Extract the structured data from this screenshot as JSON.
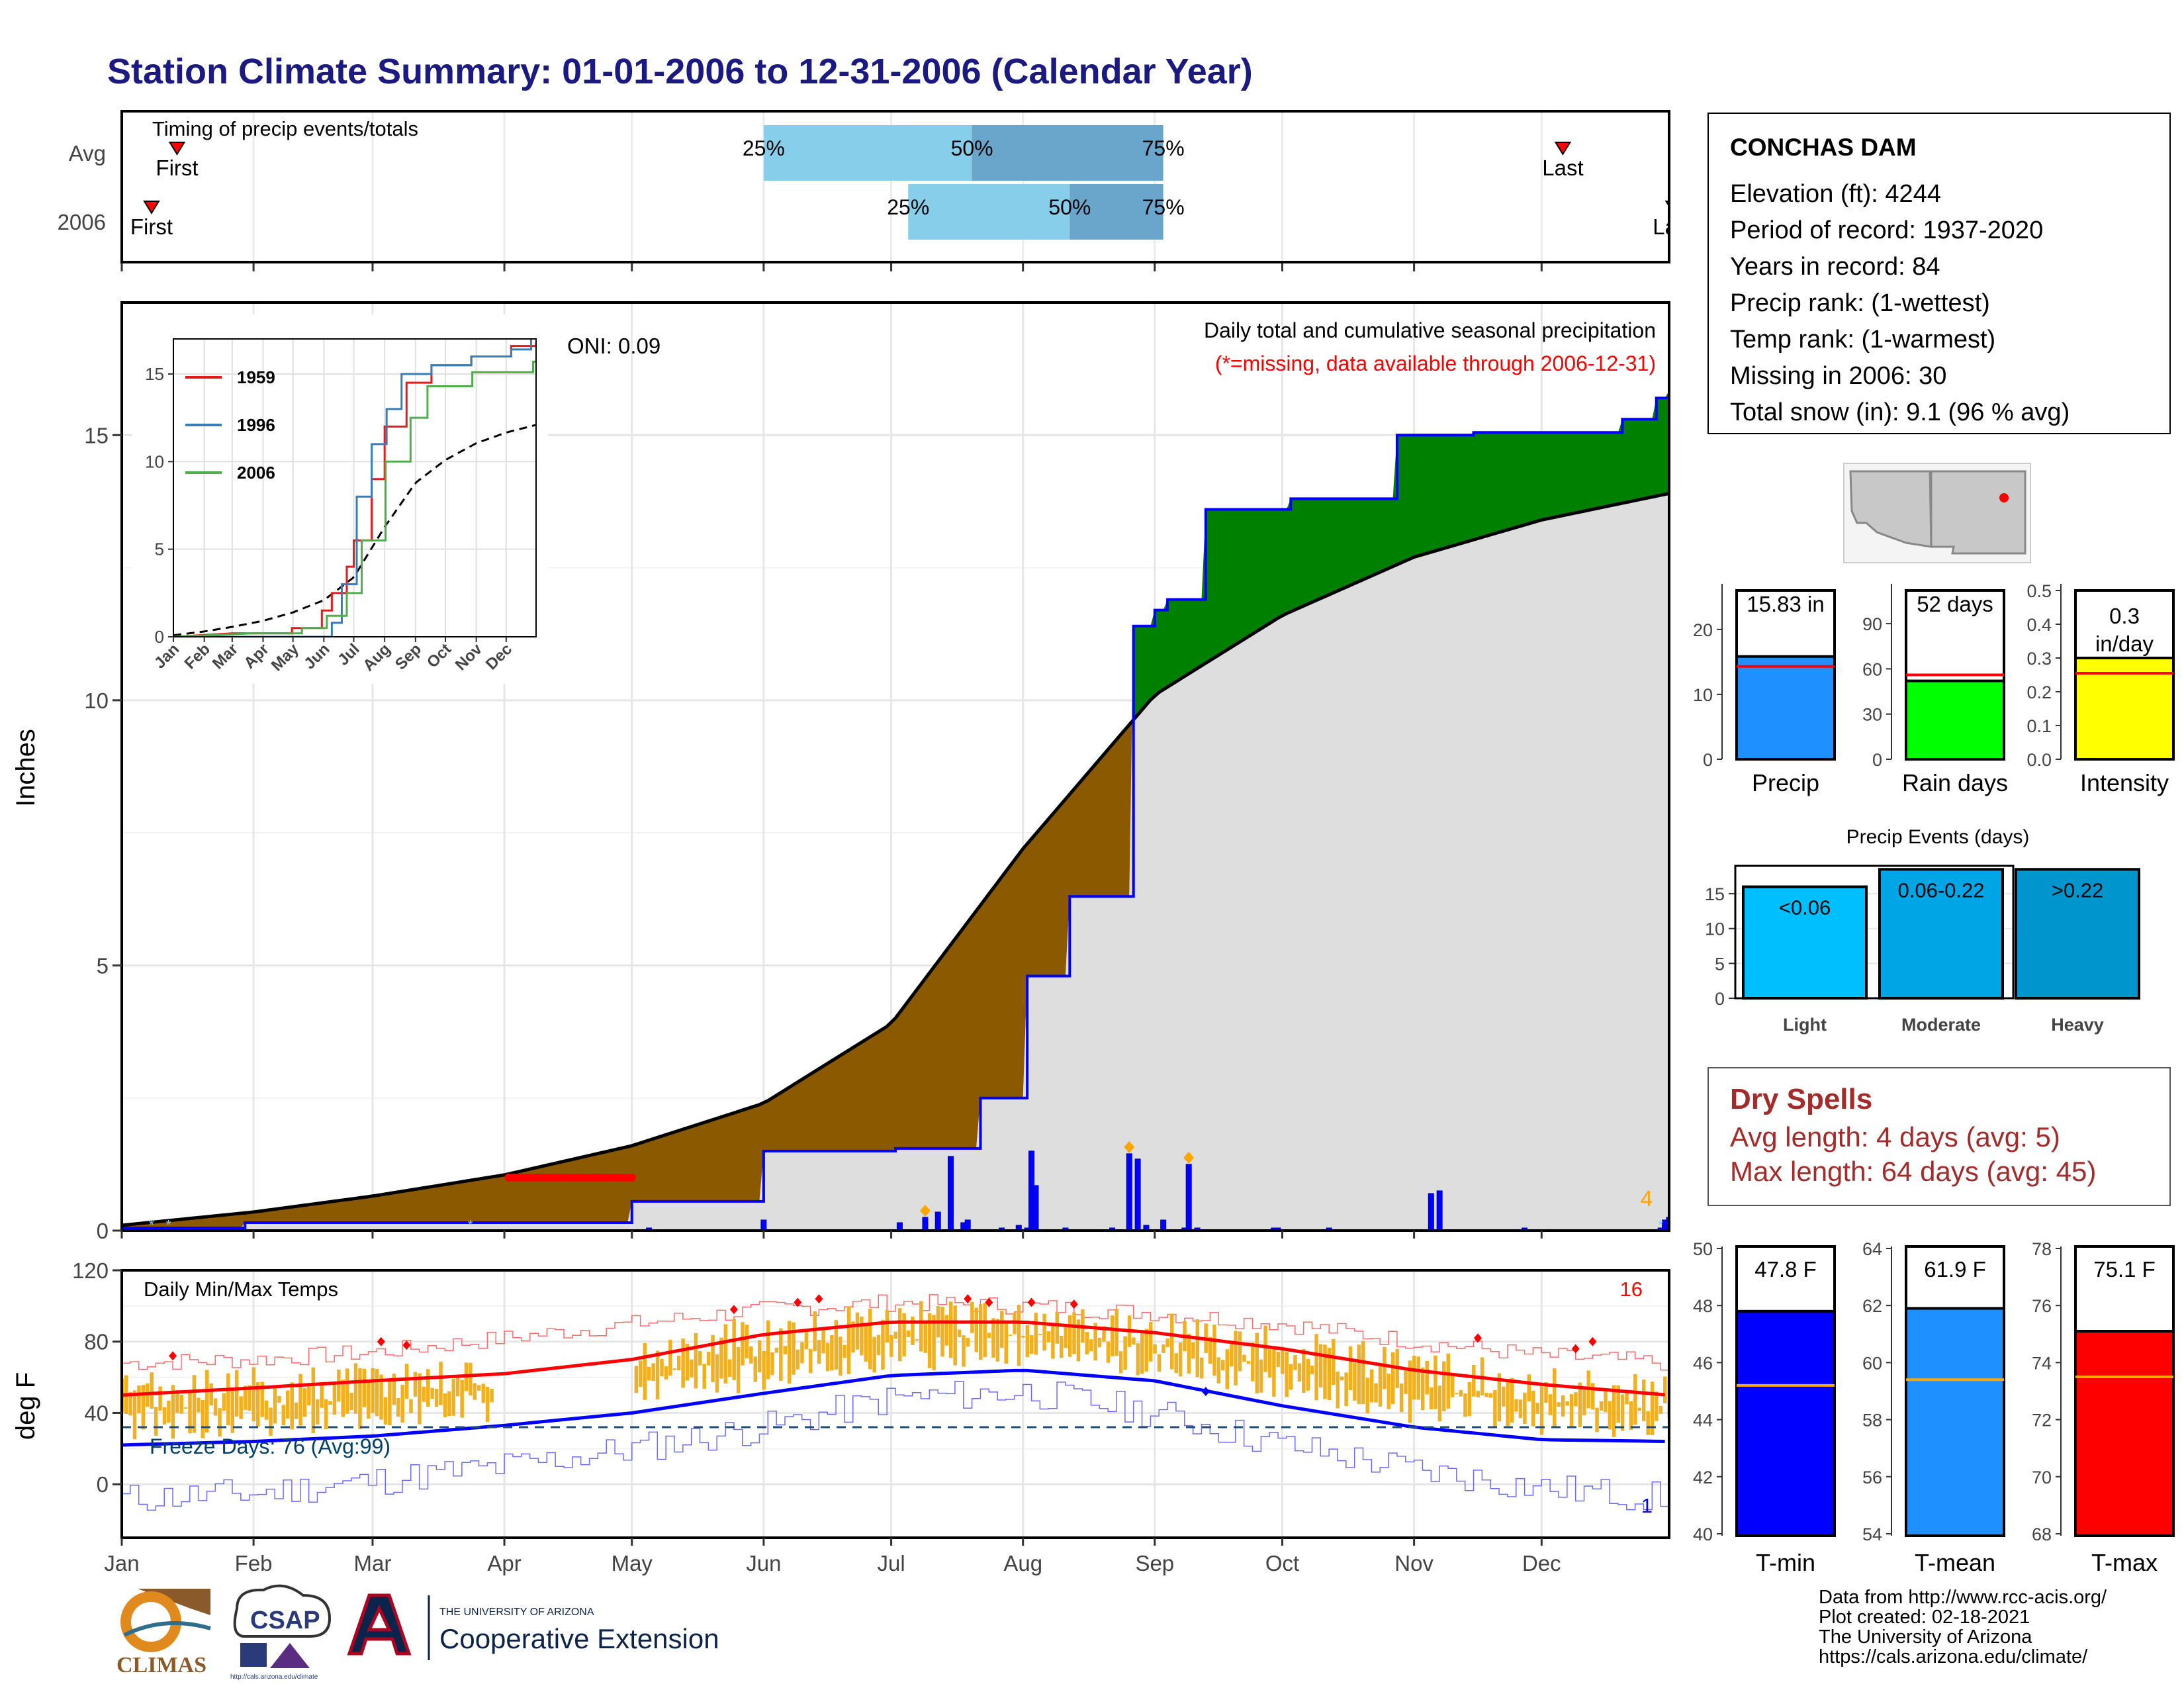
{
  "header": {
    "title": "Station Climate Summary: 01-01-2006 to 12-31-2006 (Calendar Year)"
  },
  "timing": {
    "title": "Timing of precip events/totals",
    "rows": [
      {
        "label": "Avg",
        "first": "First",
        "last": "Last",
        "first_doy": 14,
        "last_doy": 340,
        "p25": 152,
        "p50": 201,
        "p75": 246
      },
      {
        "label": "2006",
        "first": "First",
        "last": "Last",
        "first_doy": 8,
        "last_doy": 366,
        "p25": 186,
        "p50": 224,
        "p75": 246
      }
    ],
    "pct_labels": [
      "25%",
      "50%",
      "75%"
    ],
    "y_tick_labels": [
      "Avg",
      "2006"
    ]
  },
  "precip_panel": {
    "title": "Daily total and cumulative seasonal precipitation",
    "subtitle": "(*=missing, data available through 2006-12-31)",
    "oni": "ONI: 0.09",
    "ylabel": "Inches",
    "yticks": [
      "0",
      "5",
      "10",
      "15"
    ],
    "corner_count": "4"
  },
  "inset": {
    "legend": [
      "1959",
      "1996",
      "2006"
    ],
    "colors": {
      "1959": "#e41a1c",
      "1996": "#377eb8",
      "2006": "#4daf4a"
    },
    "yticks": [
      "0",
      "5",
      "10",
      "15"
    ],
    "xticks": [
      "Jan",
      "Feb",
      "Mar",
      "Apr",
      "May",
      "Jun",
      "Jul",
      "Aug",
      "Sep",
      "Oct",
      "Nov",
      "Dec"
    ]
  },
  "temp_panel": {
    "title": "Daily Min/Max Temps",
    "ylabel": "deg F",
    "yticks": [
      "0",
      "40",
      "80",
      "120"
    ],
    "freeze": "Freeze Days: 76 (Avg:99)",
    "count_red": "16",
    "count_blue": "1"
  },
  "months": [
    "Jan",
    "Feb",
    "Mar",
    "Apr",
    "May",
    "Jun",
    "Jul",
    "Aug",
    "Sep",
    "Oct",
    "Nov",
    "Dec"
  ],
  "station": {
    "name": "CONCHAS DAM",
    "lines": [
      "Elevation (ft): 4244",
      "Period of record: 1937-2020",
      "Years in record: 84",
      "Precip rank:  (1-wettest)",
      "Temp rank:  (1-warmest)",
      "Missing in 2006: 30",
      "Total snow (in): 9.1 (96 % avg)"
    ]
  },
  "summary_bars": [
    {
      "name": "Precip",
      "label": "15.83 in",
      "value": 15.83,
      "avg": 14.3,
      "ymax": 26,
      "ticks": [
        "0",
        "10",
        "20"
      ],
      "color": "#1e90ff"
    },
    {
      "name": "Rain days",
      "label": "52 days",
      "value": 52,
      "avg": 56,
      "ymax": 112,
      "ticks": [
        "0",
        "30",
        "60",
        "90"
      ],
      "color": "#00ff00"
    },
    {
      "name": "Intensity",
      "label": "0.3 in/day",
      "value": 0.3,
      "avg": 0.255,
      "ymax": 0.5,
      "ticks": [
        "0.0",
        "0.1",
        "0.2",
        "0.3",
        "0.4",
        "0.5"
      ],
      "color": "#ffff00"
    }
  ],
  "events": {
    "title": "Precip Events (days)",
    "yticks": [
      "0",
      "5",
      "10",
      "15"
    ],
    "bars": [
      {
        "cat": "Light",
        "label": "<0.06",
        "value": 16,
        "color": "#00bfff"
      },
      {
        "cat": "Moderate",
        "label": "0.06-0.22",
        "value": 18.5,
        "color": "#00a5e6"
      },
      {
        "cat": "Heavy",
        "label": ">0.22",
        "value": 18.5,
        "color": "#0095cc"
      }
    ]
  },
  "dry_spells": {
    "title": "Dry Spells",
    "avg": "Avg length: 4 days (avg: 5)",
    "max": "Max length: 64 days (avg: 45)"
  },
  "temp_bars": [
    {
      "name": "T-min",
      "label": "47.8 F",
      "value": 47.8,
      "avg": 45.2,
      "min": 40,
      "max": 50,
      "ticks": [
        "40",
        "42",
        "44",
        "46",
        "48",
        "50"
      ],
      "color": "#0000ff"
    },
    {
      "name": "T-mean",
      "label": "61.9 F",
      "value": 61.9,
      "avg": 59.4,
      "min": 54,
      "max": 64,
      "ticks": [
        "54",
        "56",
        "58",
        "60",
        "62",
        "64"
      ],
      "color": "#1e90ff"
    },
    {
      "name": "T-max",
      "label": "75.1 F",
      "value": 75.1,
      "avg": 73.5,
      "min": 68,
      "max": 78,
      "ticks": [
        "68",
        "70",
        "72",
        "74",
        "76",
        "78"
      ],
      "color": "#ff0000"
    }
  ],
  "credits": [
    "Data from http://www.rcc-acis.org/",
    "Plot created: 02-18-2021",
    "The University of Arizona",
    "https://cals.arizona.edu/climate/"
  ],
  "logos": {
    "climas": "CLIMAS",
    "csap": "CSAP",
    "csap_url": "http://cals.arizona.edu/climate",
    "ua_small": "THE UNIVERSITY OF ARIZONA",
    "ua_big": "Cooperative Extension"
  },
  "chart_data": [
    {
      "type": "line",
      "title": "Daily total and cumulative seasonal precipitation",
      "ylabel": "Inches",
      "ylim": [
        0,
        17.5
      ],
      "series": [
        {
          "name": "2006",
          "x": [
            1,
            30,
            88,
            121,
            152,
            154,
            183,
            203,
            214,
            224,
            239,
            244,
            247,
            256,
            276,
            301,
            319,
            354,
            362,
            365
          ],
          "values": [
            0.05,
            0.15,
            0.15,
            0.55,
            1.5,
            1.5,
            1.55,
            2.5,
            4.8,
            6.3,
            11.4,
            11.7,
            11.9,
            13.6,
            13.8,
            15.0,
            15.05,
            15.3,
            15.7,
            15.83
          ]
        },
        {
          "x": [
            1,
            32,
            60,
            91,
            121,
            152,
            182,
            213,
            244,
            274,
            305,
            335,
            365
          ],
          "values": [
            0.1,
            0.35,
            0.65,
            1.05,
            1.6,
            2.4,
            3.9,
            7.2,
            10.1,
            11.6,
            12.7,
            13.4,
            13.9
          ]
        }
      ]
    },
    {
      "type": "bar",
      "title": "Daily total and cumulative seasonal precipitation",
      "x": [
        125,
        152,
        184,
        190,
        193,
        196,
        199,
        200,
        208,
        212,
        214,
        215,
        216,
        223,
        234,
        238,
        240,
        242,
        246,
        251,
        252,
        254,
        272,
        273,
        285,
        309,
        311,
        331,
        363,
        364,
        365
      ],
      "values": [
        0.05,
        0.2,
        0.15,
        0.25,
        0.35,
        1.4,
        0.15,
        0.2,
        0.05,
        0.1,
        0.05,
        1.5,
        0.85,
        0.05,
        0.05,
        1.45,
        1.35,
        0.1,
        0.2,
        0.05,
        1.25,
        0.05,
        0.05,
        0.05,
        0.05,
        0.7,
        0.75,
        0.05,
        0.05,
        0.2,
        0.25
      ]
    },
    {
      "type": "line",
      "title": "Daily Min/Max Temps",
      "ylabel": "deg F",
      "ylim": [
        -30,
        120
      ],
      "series": [
        {
          "x": [
            1,
            32,
            60,
            91,
            121,
            152,
            182,
            213,
            244,
            274,
            305,
            335,
            365
          ],
          "values": [
            50,
            54,
            58,
            62,
            70,
            84,
            91,
            91,
            85,
            76,
            64,
            56,
            50
          ]
        },
        {
          "x": [
            1,
            32,
            60,
            91,
            121,
            152,
            182,
            213,
            244,
            274,
            305,
            335,
            365
          ],
          "values": [
            22,
            24,
            27,
            33,
            40,
            51,
            61,
            64,
            58,
            44,
            32,
            25,
            24
          ]
        },
        {
          "x": [
            1,
            32,
            60,
            91,
            121,
            152,
            182,
            213,
            244,
            274,
            305,
            335,
            365
          ],
          "values": [
            68,
            70,
            74,
            82,
            90,
            98,
            102,
            100,
            96,
            90,
            80,
            72,
            68
          ]
        },
        {
          "x": [
            1,
            32,
            60,
            91,
            121,
            152,
            182,
            213,
            244,
            274,
            305,
            335,
            365
          ],
          "values": [
            -8,
            -5,
            2,
            10,
            20,
            32,
            48,
            52,
            40,
            22,
            8,
            -2,
            -8
          ]
        }
      ]
    }
  ]
}
